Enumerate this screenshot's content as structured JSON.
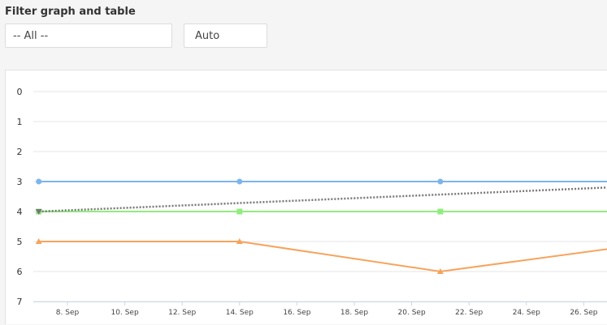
{
  "filter": {
    "title": "Filter graph and table",
    "category_value": "-- All --",
    "range_value": "Auto"
  },
  "chart_data": {
    "type": "line",
    "y_reversed": true,
    "ylim": [
      0,
      7
    ],
    "y_ticks": [
      "0",
      "1",
      "2",
      "3",
      "4",
      "5",
      "6",
      "7"
    ],
    "x_ticks": [
      "8. Sep",
      "10. Sep",
      "12. Sep",
      "14. Sep",
      "16. Sep",
      "18. Sep",
      "20. Sep",
      "22. Sep",
      "24. Sep",
      "26. Sep"
    ],
    "grid": true,
    "series": [
      {
        "color": "#7cb5ec",
        "marker": "circle",
        "style": "solid",
        "points": [
          [
            "7. Sep",
            3
          ],
          [
            "14. Sep",
            3
          ],
          [
            "21. Sep",
            3
          ],
          [
            "28. Sep",
            3
          ]
        ]
      },
      {
        "color": "#90ed7d",
        "marker": "square",
        "style": "solid",
        "points": [
          [
            "7. Sep",
            4
          ],
          [
            "14. Sep",
            4
          ],
          [
            "21. Sep",
            4
          ],
          [
            "28. Sep",
            4
          ]
        ]
      },
      {
        "color": "#f7a35c",
        "marker": "triangle",
        "style": "solid",
        "points": [
          [
            "7. Sep",
            5
          ],
          [
            "14. Sep",
            5
          ],
          [
            "21. Sep",
            6
          ],
          [
            "28. Sep",
            5.1
          ]
        ]
      },
      {
        "color": "#777777",
        "marker": "triangle-down",
        "style": "dotted",
        "points": [
          [
            "7. Sep",
            4
          ],
          [
            "28. Sep",
            3.15
          ]
        ]
      }
    ]
  }
}
